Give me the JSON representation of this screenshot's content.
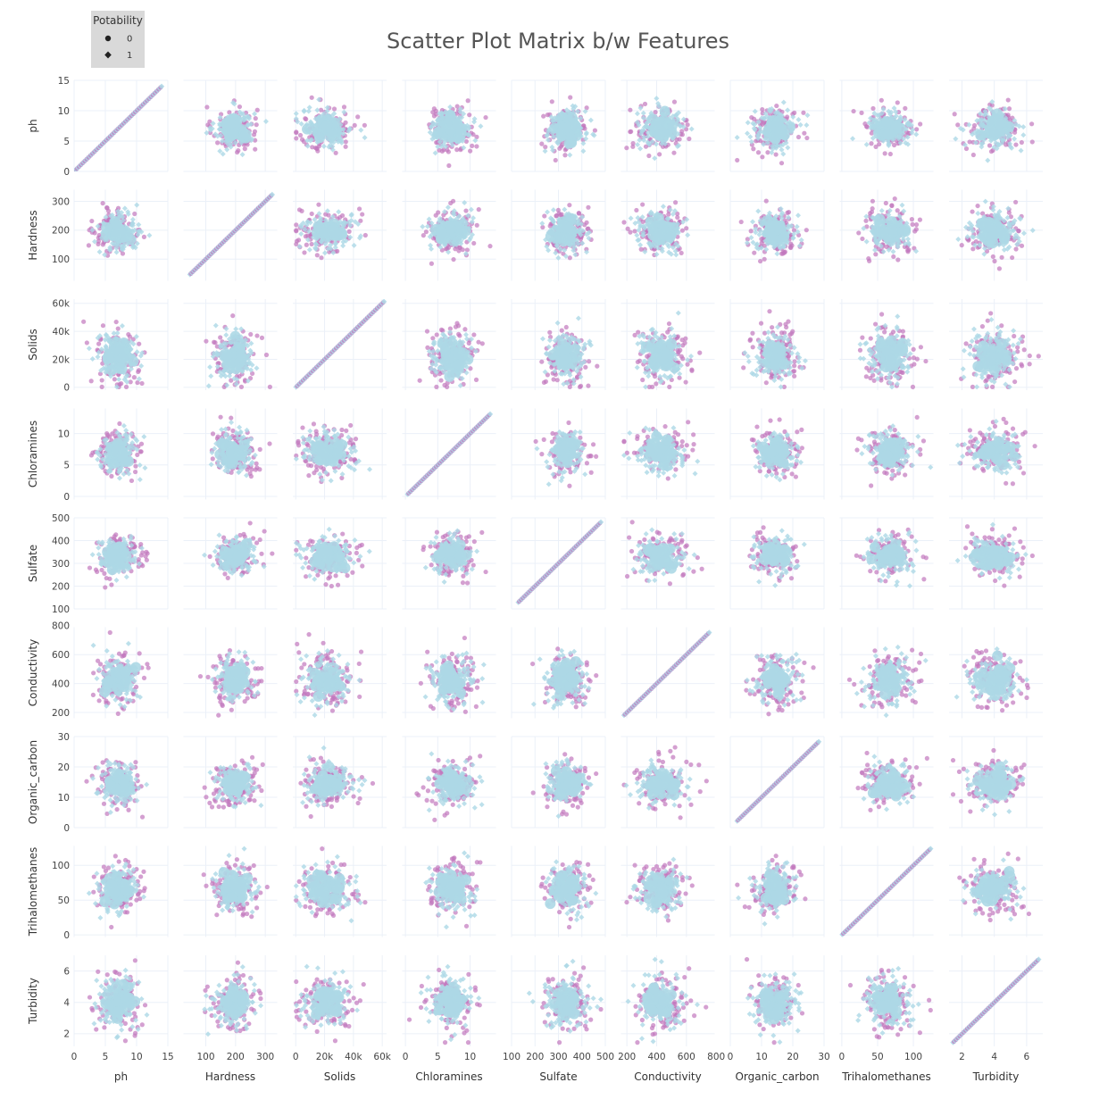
{
  "chart_data": {
    "type": "scatter",
    "title": "Scatter Plot Matrix b/w Features",
    "legend": {
      "title": "Potability",
      "placement": "top-left",
      "entries": [
        {
          "label": "0",
          "symbol": "circle",
          "color": "#c278bd"
        },
        {
          "label": "1",
          "symbol": "diamond",
          "color": "#add8e6"
        }
      ]
    },
    "dimensions": [
      {
        "name": "ph",
        "range": [
          0,
          15
        ],
        "ticks": [
          0,
          5,
          10,
          15
        ],
        "tick_labels": [
          "0",
          "5",
          "10",
          "15"
        ],
        "center": 7.0,
        "spread": 1.6,
        "data_min": 0,
        "data_max": 14
      },
      {
        "name": "Hardness",
        "range": [
          25,
          340
        ],
        "ticks": [
          100,
          200,
          300
        ],
        "tick_labels": [
          "100",
          "200",
          "300"
        ],
        "center": 196,
        "spread": 33,
        "data_min": 47,
        "data_max": 323
      },
      {
        "name": "Solids",
        "range": [
          -2000,
          63000
        ],
        "ticks": [
          0,
          20000,
          40000,
          60000
        ],
        "tick_labels": [
          "0",
          "20k",
          "40k",
          "60k"
        ],
        "center": 22000,
        "spread": 8800,
        "data_min": 320,
        "data_max": 61200
      },
      {
        "name": "Chloramines",
        "range": [
          -0.5,
          14
        ],
        "ticks": [
          0,
          5,
          10
        ],
        "tick_labels": [
          "0",
          "5",
          "10"
        ],
        "center": 7.1,
        "spread": 1.6,
        "data_min": 0.35,
        "data_max": 13.1
      },
      {
        "name": "Sulfate",
        "range": [
          100,
          500
        ],
        "ticks": [
          100,
          200,
          300,
          400,
          500
        ],
        "tick_labels": [
          "100",
          "200",
          "300",
          "400",
          "500"
        ],
        "center": 333,
        "spread": 41,
        "data_min": 129,
        "data_max": 481
      },
      {
        "name": "Conductivity",
        "range": [
          160,
          790
        ],
        "ticks": [
          200,
          400,
          600,
          800
        ],
        "tick_labels": [
          "200",
          "400",
          "600",
          "800"
        ],
        "center": 426,
        "spread": 80,
        "data_min": 181,
        "data_max": 753
      },
      {
        "name": "Organic_carbon",
        "range": [
          0,
          30
        ],
        "ticks": [
          0,
          10,
          20,
          30
        ],
        "tick_labels": [
          "0",
          "10",
          "20",
          "30"
        ],
        "center": 14.3,
        "spread": 3.3,
        "data_min": 2.2,
        "data_max": 28.3
      },
      {
        "name": "Trihalomethanes",
        "range": [
          -3,
          128
        ],
        "ticks": [
          0,
          50,
          100
        ],
        "tick_labels": [
          "0",
          "50",
          "100"
        ],
        "center": 66.4,
        "spread": 16,
        "data_min": 0.7,
        "data_max": 124
      },
      {
        "name": "Turbidity",
        "range": [
          1.2,
          7.0
        ],
        "ticks": [
          2,
          4,
          6
        ],
        "tick_labels": [
          "2",
          "4",
          "6"
        ],
        "center": 3.97,
        "spread": 0.78,
        "data_min": 1.45,
        "data_max": 6.74
      }
    ],
    "grid": true,
    "diagonal": "identity scatter (variable vs itself)"
  },
  "colors": {
    "class0": "#c278bd",
    "class1": "#add8e6",
    "grid": "#ebf0f8",
    "legend_bg": "#d9d9d9"
  }
}
